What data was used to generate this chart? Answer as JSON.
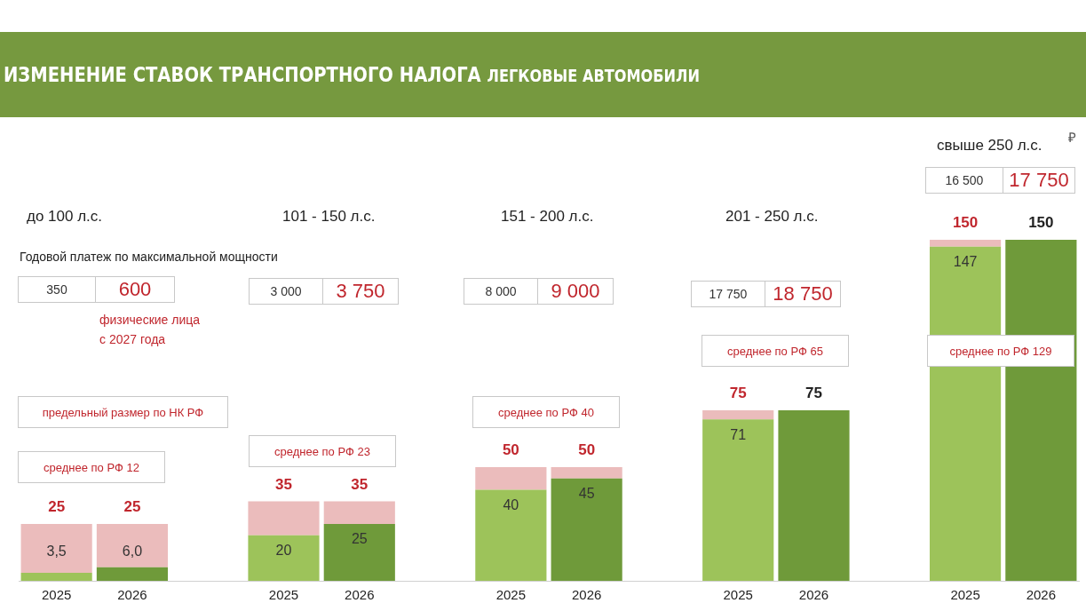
{
  "chart_data": {
    "type": "bar",
    "title": "ИЗМЕНЕНИЕ СТАВОК ТРАНСПОРТНОГО НАЛОГА",
    "subtitle": "ЛЕГКОВЫЕ АВТОМОБИЛИ",
    "categories": [
      "2025",
      "2026",
      null,
      "2025",
      "2026",
      null,
      "2025",
      "2026",
      null,
      "2025",
      "2026",
      null,
      "2025",
      "2026"
    ],
    "stacked": true,
    "ylim": [
      0,
      150
    ],
    "legend": false,
    "grid": false,
    "series": [
      {
        "values": [
          3.5,
          6.0,
          null,
          20,
          25,
          null,
          40,
          45,
          null,
          71,
          75,
          null,
          147,
          150
        ],
        "colors": [
          "#9dc35a",
          "#6f9a3a",
          null,
          "#9dc35a",
          "#6f9a3a",
          null,
          "#9dc35a",
          "#6f9a3a",
          null,
          "#9dc35a",
          "#6f9a3a",
          null,
          "#9dc35a",
          "#6f9a3a"
        ],
        "value_labels": [
          "3,5",
          "6,0",
          null,
          "20",
          "25",
          null,
          "40",
          "45",
          null,
          "71",
          null,
          null,
          "147",
          null
        ]
      },
      {
        "values": [
          21.5,
          19,
          null,
          15,
          10,
          null,
          10,
          5,
          null,
          4,
          0,
          null,
          3,
          0
        ],
        "color": "#ebbcbc"
      }
    ],
    "totals": [
      "25",
      "25",
      null,
      "35",
      "35",
      null,
      "50",
      "50",
      null,
      "75",
      "75",
      null,
      "150",
      "150"
    ],
    "annotations": [
      "до 100 л.с.",
      "101 - 150 л.с.",
      "151 - 200 л.с.",
      "201 - 250 л.с.",
      "свыше 250 л.с.",
      "Годовой платеж по максимальной мощности",
      "350",
      "600",
      "3 000",
      "3 750",
      "8 000",
      "9 000",
      "17 750",
      "18 750",
      "16 500",
      "17 750",
      "физические лица\nс 2027 года",
      "предельный размер по НК РФ",
      "среднее по РФ 12",
      "среднее по РФ 23",
      "среднее по РФ 40",
      "среднее по РФ 65",
      "среднее по РФ 129",
      "₽"
    ]
  }
}
